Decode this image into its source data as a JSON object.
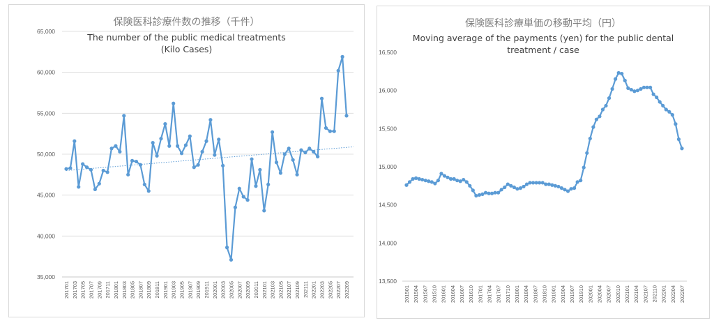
{
  "chart_data": [
    {
      "type": "line",
      "title": "保険医科診療件数の推移（千件）",
      "subtitle_lines": [
        "The number of the public medical treatments",
        "(Kilo Cases)"
      ],
      "ylim": [
        35000,
        65000
      ],
      "yticks": [
        "35,000",
        "40,000",
        "45,000",
        "50,000",
        "55,000",
        "60,000",
        "65,000"
      ],
      "ytick_values": [
        35000,
        40000,
        45000,
        50000,
        55000,
        60000,
        65000
      ],
      "xtick_labels": [
        "201701",
        "201703",
        "201705",
        "201707",
        "201709",
        "201711",
        "201801",
        "201803",
        "201805",
        "201807",
        "201809",
        "201811",
        "201901",
        "201903",
        "201905",
        "201907",
        "201909",
        "201911",
        "202001",
        "202003",
        "202005",
        "202007",
        "202009",
        "202011",
        "202101",
        "202103",
        "202105",
        "202107",
        "202109",
        "202111",
        "202201",
        "202203",
        "202205",
        "202207",
        "202209"
      ],
      "grid": true,
      "trendline": [
        48000,
        50900
      ],
      "series": [
        {
          "color": "#5b9bd5",
          "values": [
            48200,
            48300,
            51600,
            46000,
            48800,
            48400,
            48100,
            45700,
            46400,
            48000,
            47800,
            50700,
            51000,
            50300,
            54700,
            47500,
            49200,
            49100,
            48700,
            46300,
            45500,
            51400,
            49800,
            51900,
            53700,
            51000,
            56200,
            51000,
            50100,
            51100,
            52200,
            48400,
            48700,
            50300,
            51600,
            54200,
            49900,
            51800,
            48600,
            38600,
            37100,
            43500,
            45800,
            44800,
            44400,
            49400,
            46100,
            48100,
            43100,
            46300,
            52700,
            49000,
            47700,
            50000,
            50700,
            49300,
            47500,
            50500,
            50200,
            50700,
            50300,
            49700,
            56800,
            53200,
            52800,
            52800,
            60200,
            61900,
            54700
          ]
        }
      ]
    },
    {
      "type": "line",
      "title": "保険医科診療単価の移動平均（円）",
      "subtitle_lines": [
        "Moving average of the payments (yen) for the public dental",
        "treatment / case"
      ],
      "ylim": [
        13500,
        16500
      ],
      "yticks": [
        "13,500",
        "14,000",
        "14,500",
        "15,000",
        "15,500",
        "16,000",
        "16,500"
      ],
      "ytick_values": [
        13500,
        14000,
        14500,
        15000,
        15500,
        16000,
        16500
      ],
      "xtick_labels": [
        "201501",
        "201504",
        "201507",
        "201510",
        "201601",
        "201604",
        "201607",
        "201610",
        "201701",
        "201704",
        "201707",
        "201710",
        "201801",
        "201804",
        "201807",
        "201810",
        "201901",
        "201904",
        "201907",
        "201910",
        "202001",
        "202004",
        "202007",
        "202010",
        "202101",
        "202104",
        "202107",
        "202110",
        "202201",
        "202204",
        "202207"
      ],
      "grid": false,
      "series": [
        {
          "color": "#5b9bd5",
          "values": [
            14760,
            14800,
            14840,
            14850,
            14840,
            14830,
            14820,
            14810,
            14800,
            14780,
            14820,
            14910,
            14880,
            14860,
            14840,
            14840,
            14820,
            14810,
            14830,
            14800,
            14750,
            14690,
            14620,
            14630,
            14640,
            14660,
            14650,
            14650,
            14660,
            14660,
            14700,
            14730,
            14770,
            14750,
            14730,
            14710,
            14720,
            14740,
            14770,
            14790,
            14790,
            14790,
            14790,
            14790,
            14770,
            14770,
            14760,
            14750,
            14740,
            14720,
            14700,
            14680,
            14710,
            14720,
            14800,
            14820,
            14990,
            15180,
            15370,
            15520,
            15620,
            15660,
            15750,
            15800,
            15900,
            16020,
            16150,
            16230,
            16220,
            16130,
            16030,
            16010,
            15990,
            16000,
            16020,
            16040,
            16040,
            16040,
            15950,
            15910,
            15850,
            15800,
            15750,
            15720,
            15680,
            15560,
            15360,
            15240
          ]
        }
      ]
    }
  ]
}
